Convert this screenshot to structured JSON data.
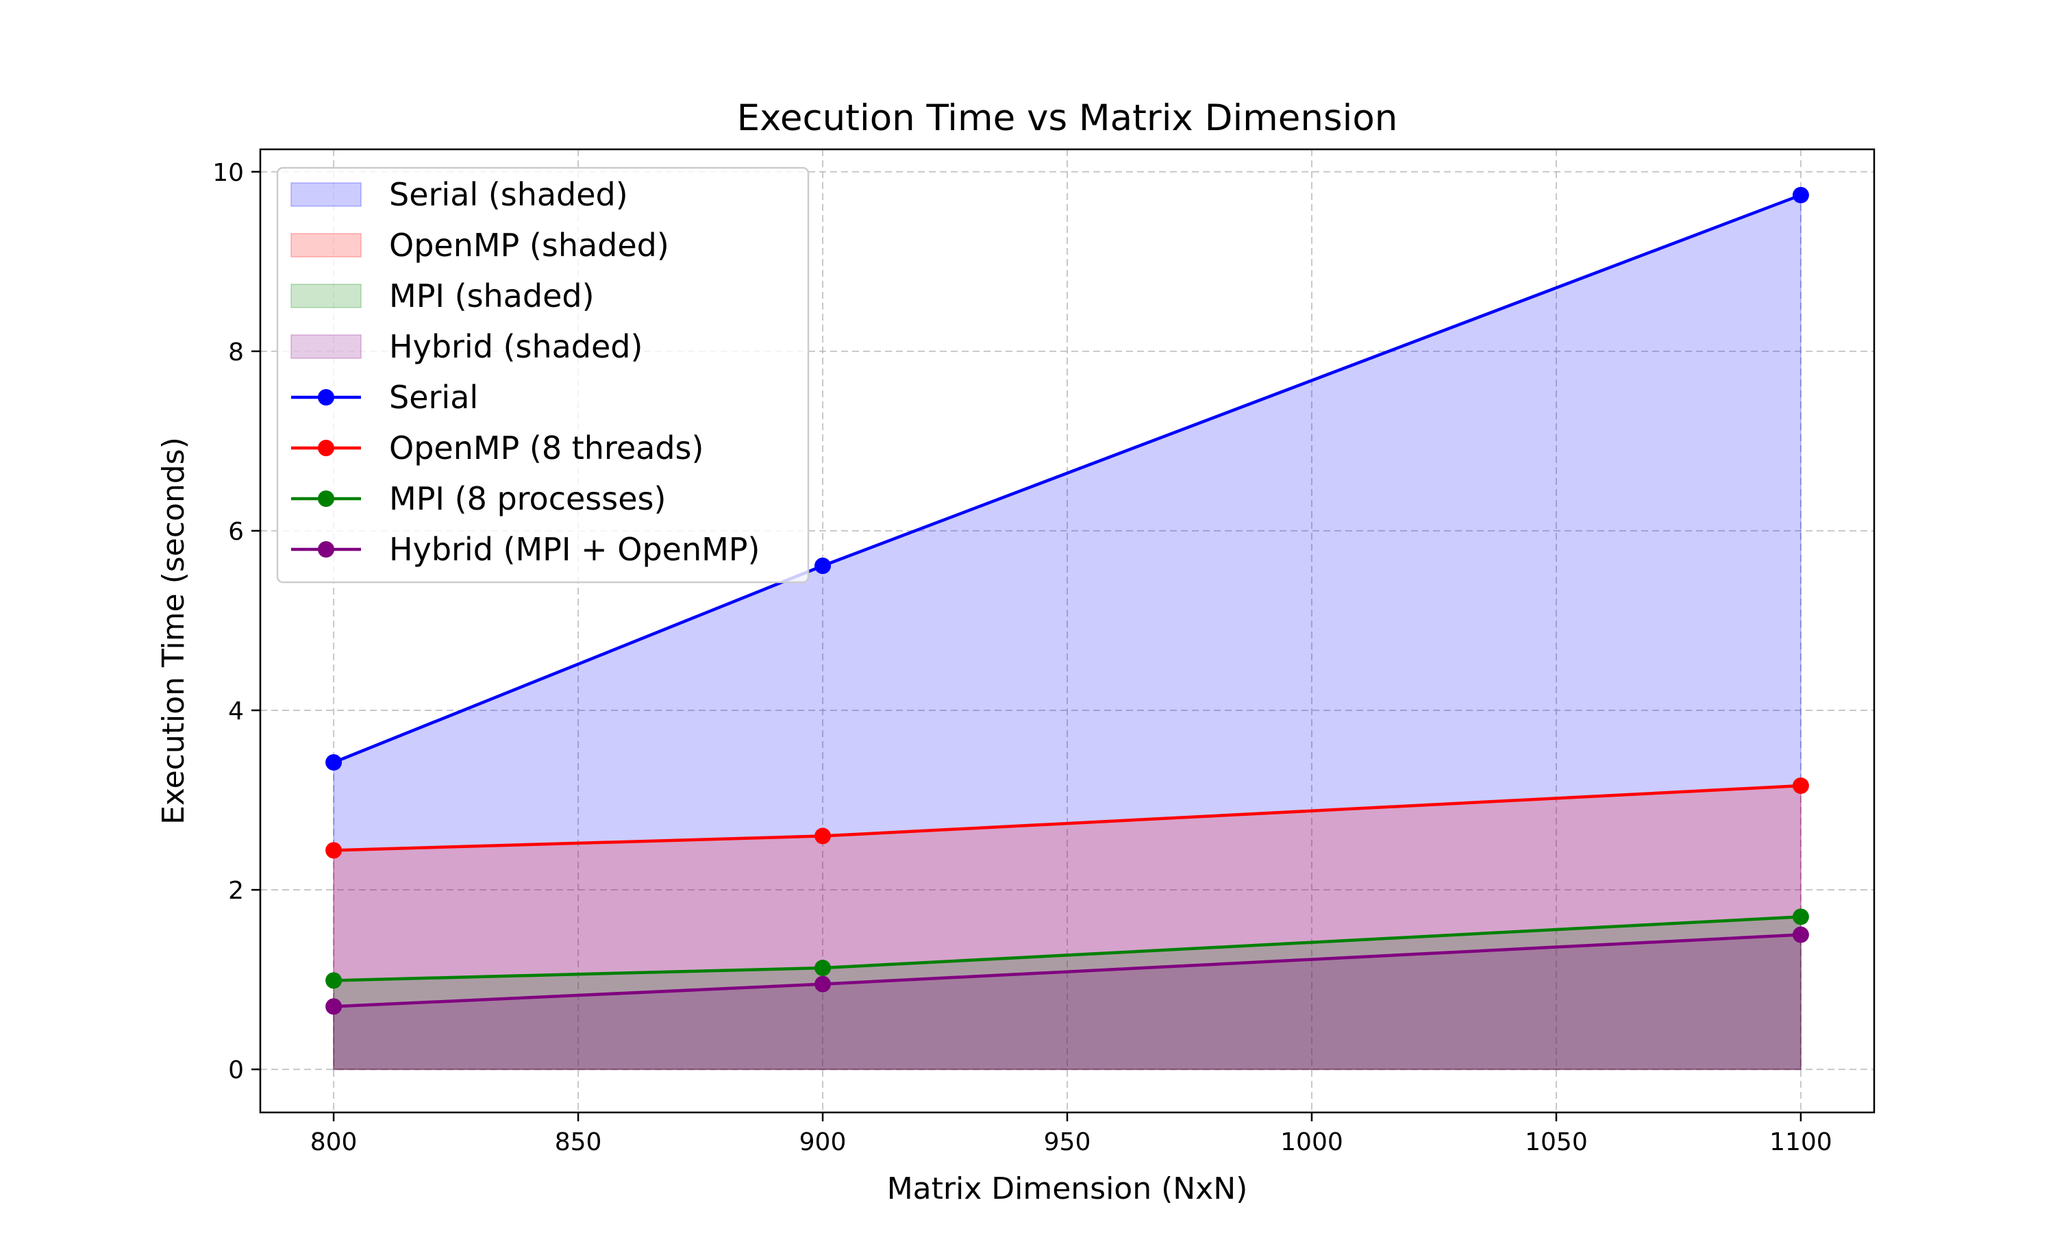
{
  "chart_data": {
    "type": "line",
    "title": "Execution Time vs Matrix Dimension",
    "xlabel": "Matrix Dimension (NxN)",
    "ylabel": "Execution Time (seconds)",
    "x": [
      800,
      900,
      1100
    ],
    "xlim": [
      785,
      1115
    ],
    "ylim": [
      -0.48,
      10.25
    ],
    "xticks": [
      800,
      850,
      900,
      950,
      1000,
      1050,
      1100
    ],
    "yticks": [
      0,
      2,
      4,
      6,
      8,
      10
    ],
    "grid": true,
    "legend_position": "upper-left",
    "series": [
      {
        "name": "Serial",
        "shaded_name": "Serial (shaded)",
        "color": "#0000ff",
        "values": [
          3.42,
          5.61,
          9.74
        ]
      },
      {
        "name": "OpenMP (8 threads)",
        "shaded_name": "OpenMP (shaded)",
        "color": "#ff0000",
        "values": [
          2.44,
          2.6,
          3.16
        ]
      },
      {
        "name": "MPI (8 processes)",
        "shaded_name": "MPI (shaded)",
        "color": "#008000",
        "values": [
          0.99,
          1.13,
          1.7
        ]
      },
      {
        "name": "Hybrid (MPI + OpenMP)",
        "shaded_name": "Hybrid (shaded)",
        "color": "#800080",
        "values": [
          0.7,
          0.95,
          1.5
        ]
      }
    ]
  }
}
